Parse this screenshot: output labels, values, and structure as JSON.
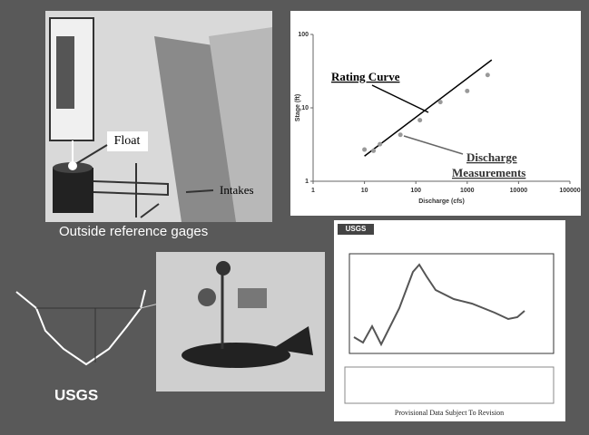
{
  "chart_data": {
    "type": "scatter",
    "x_label": "Discharge (cfs)",
    "y_label": "Stage (ft)",
    "annotations": {
      "rating_curve": "Rating Curve",
      "measurements": [
        "Discharge",
        "Measurements"
      ]
    },
    "x": [
      10,
      15,
      20,
      50,
      120,
      300,
      1000,
      2500
    ],
    "values": [
      2.7,
      2.6,
      3.2,
      4.3,
      6.8,
      12,
      17,
      28
    ],
    "color": "#999999",
    "fit_line": {
      "x": [
        10,
        3000
      ],
      "values": [
        2.2,
        45
      ],
      "color": "#000000"
    },
    "log_x": true,
    "log_y": true,
    "xlim": [
      1,
      100000
    ],
    "ylim": [
      1,
      100
    ],
    "xticks": [
      1,
      10,
      100,
      1000,
      10000,
      100000
    ],
    "yticks": [
      1,
      10,
      100
    ]
  },
  "labels": {
    "float": "Float",
    "intakes": "Intakes",
    "outside": "Outside reference gages",
    "logo": "USGS",
    "hydrograph_header": "USGS",
    "hydrograph_footer": "Provisional Data Subject To Revision"
  }
}
